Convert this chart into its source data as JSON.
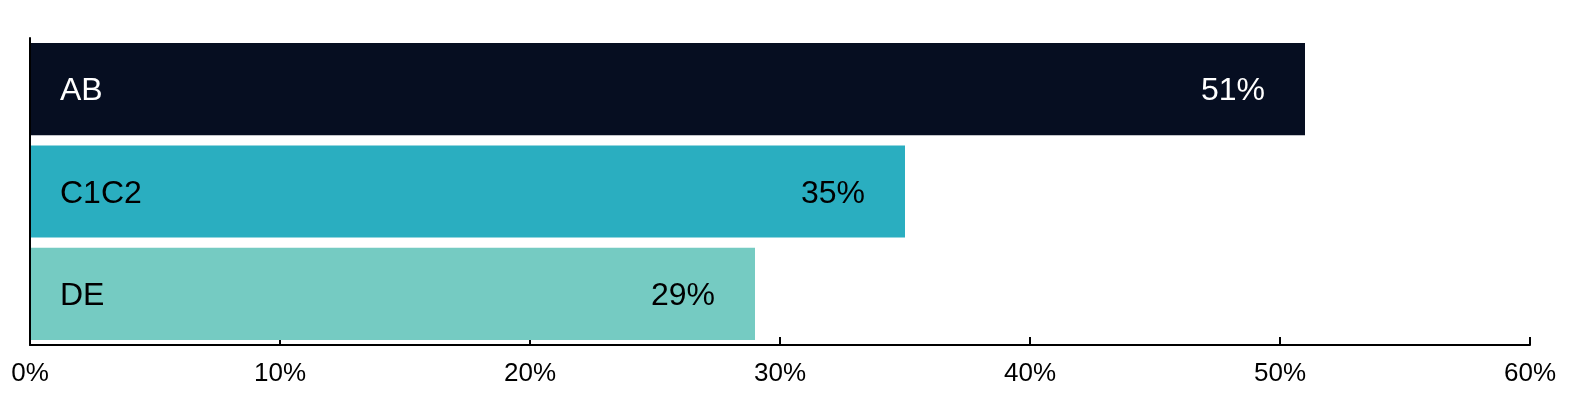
{
  "chart_data": {
    "type": "bar",
    "orientation": "horizontal",
    "categories": [
      "AB",
      "C1C2",
      "DE"
    ],
    "values": [
      51,
      35,
      29
    ],
    "colors": [
      "#060e21",
      "#2aaec0",
      "#75cbc2"
    ],
    "value_labels": [
      "51%",
      "35%",
      "29%"
    ],
    "xlim": [
      0,
      60
    ],
    "xticks": [
      {
        "value": 0,
        "label": "0%"
      },
      {
        "value": 10,
        "label": "10%"
      },
      {
        "value": 20,
        "label": "20%"
      },
      {
        "value": 30,
        "label": "30%"
      },
      {
        "value": 40,
        "label": "40%"
      },
      {
        "value": 50,
        "label": "50%"
      },
      {
        "value": 60,
        "label": "60%"
      }
    ],
    "grid": false
  }
}
